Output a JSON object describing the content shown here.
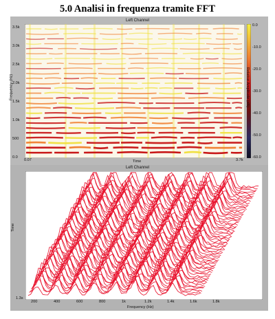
{
  "page": {
    "title": "5.0 Analisi in frequenza tramite FFT"
  },
  "spectrogram": {
    "channel_label": "Left Channel",
    "y_axis_title": "Frequency (Hz)",
    "x_axis_title": "Time",
    "colorbar_title": "Relative Amplitude (dB)",
    "y_ticks": [
      "3.5k",
      "3.0k",
      "2.5k",
      "2.0k",
      "1.5k",
      "1.0k",
      "500",
      "0.0"
    ],
    "x_start": "0.07",
    "x_end": "3.7k",
    "colorbar_ticks": [
      "0.0",
      "-10.0",
      "-20.0",
      "-30.0",
      "-40.0",
      "-50.0",
      "-60.0"
    ],
    "colors": {
      "background": "#fbf7ea",
      "low": "#f0e040",
      "mid": "#f08030",
      "high": "#c81818"
    }
  },
  "waterfall": {
    "channel_label": "Left Channel",
    "y_axis_title": "Time",
    "x_axis_title": "Frequency (Hz)",
    "y_ticks": [
      "1.3s"
    ],
    "x_ticks": [
      "200",
      "400",
      "600",
      "800",
      "1k",
      "1.2k",
      "1.4k",
      "1.6k",
      "1.8k"
    ],
    "colors": {
      "background": "#ffffff",
      "trace": "#e8102a"
    }
  }
}
